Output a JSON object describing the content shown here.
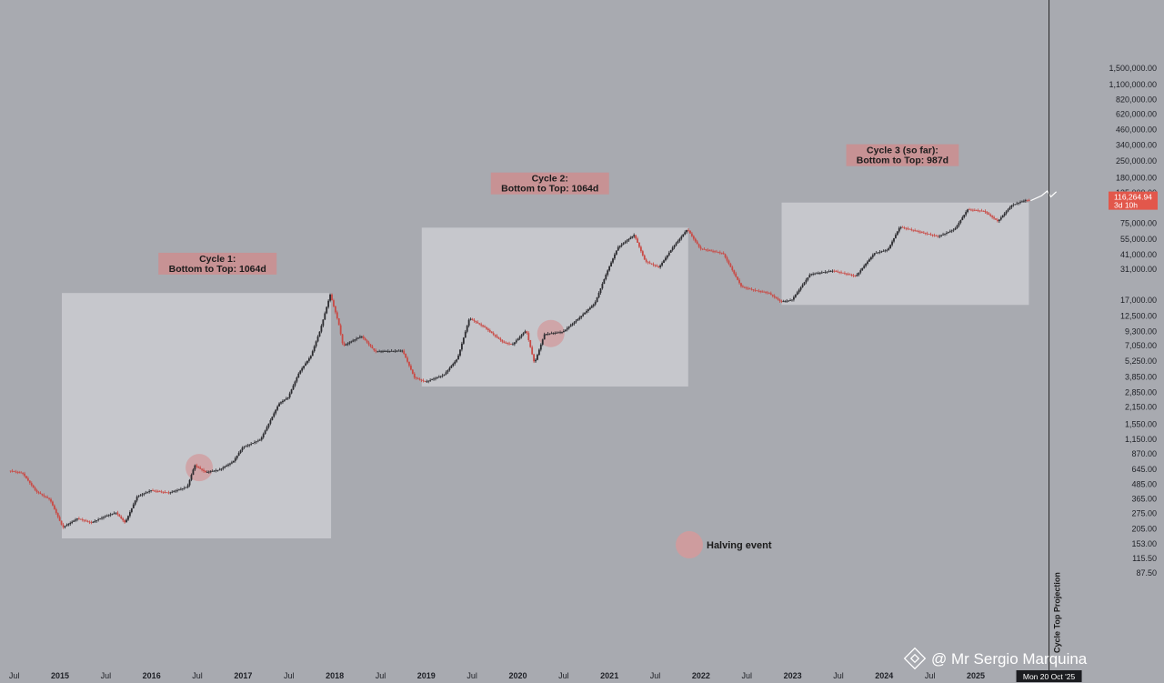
{
  "chart_data": {
    "type": "candlestick",
    "title": "",
    "y_scale": "log",
    "y_ticks": [
      "1,500,000.00",
      "1,100,000.00",
      "820,000.00",
      "620,000.00",
      "460,000.00",
      "340,000.00",
      "250,000.00",
      "180,000.00",
      "135,000.00",
      "75,000.00",
      "55,000.00",
      "41,000.00",
      "31,000.00",
      "17,000.00",
      "12,500.00",
      "9,300.00",
      "7,050.00",
      "5,250.00",
      "3,850.00",
      "2,850.00",
      "2,150.00",
      "1,550.00",
      "1,150.00",
      "870.00",
      "645.00",
      "485.00",
      "365.00",
      "275.00",
      "205.00",
      "153.00",
      "115.50",
      "87.50"
    ],
    "x_ticks": [
      {
        "label": "Jul",
        "date": 2014.5,
        "year": false
      },
      {
        "label": "2015",
        "date": 2015.0,
        "year": true
      },
      {
        "label": "Jul",
        "date": 2015.5,
        "year": false
      },
      {
        "label": "2016",
        "date": 2016.0,
        "year": true
      },
      {
        "label": "Jul",
        "date": 2016.5,
        "year": false
      },
      {
        "label": "2017",
        "date": 2017.0,
        "year": true
      },
      {
        "label": "Jul",
        "date": 2017.5,
        "year": false
      },
      {
        "label": "2018",
        "date": 2018.0,
        "year": true
      },
      {
        "label": "Jul",
        "date": 2018.5,
        "year": false
      },
      {
        "label": "2019",
        "date": 2019.0,
        "year": true
      },
      {
        "label": "Jul",
        "date": 2019.5,
        "year": false
      },
      {
        "label": "2020",
        "date": 2020.0,
        "year": true
      },
      {
        "label": "Jul",
        "date": 2020.5,
        "year": false
      },
      {
        "label": "2021",
        "date": 2021.0,
        "year": true
      },
      {
        "label": "Jul",
        "date": 2021.5,
        "year": false
      },
      {
        "label": "2022",
        "date": 2022.0,
        "year": true
      },
      {
        "label": "Jul",
        "date": 2022.5,
        "year": false
      },
      {
        "label": "2023",
        "date": 2023.0,
        "year": true
      },
      {
        "label": "Jul",
        "date": 2023.5,
        "year": false
      },
      {
        "label": "2024",
        "date": 2024.0,
        "year": true
      },
      {
        "label": "Jul",
        "date": 2024.5,
        "year": false
      },
      {
        "label": "2025",
        "date": 2025.0,
        "year": true
      }
    ],
    "price_path": [
      [
        2014.45,
        630
      ],
      [
        2014.6,
        600
      ],
      [
        2014.75,
        420
      ],
      [
        2014.9,
        360
      ],
      [
        2015.04,
        210
      ],
      [
        2015.2,
        250
      ],
      [
        2015.35,
        230
      ],
      [
        2015.5,
        260
      ],
      [
        2015.62,
        280
      ],
      [
        2015.72,
        230
      ],
      [
        2015.85,
        380
      ],
      [
        2016.0,
        430
      ],
      [
        2016.2,
        410
      ],
      [
        2016.4,
        460
      ],
      [
        2016.48,
        700
      ],
      [
        2016.6,
        610
      ],
      [
        2016.75,
        640
      ],
      [
        2016.9,
        750
      ],
      [
        2017.0,
        980
      ],
      [
        2017.2,
        1150
      ],
      [
        2017.4,
        2300
      ],
      [
        2017.5,
        2600
      ],
      [
        2017.62,
        4200
      ],
      [
        2017.75,
        5800
      ],
      [
        2017.85,
        9500
      ],
      [
        2017.96,
        19000
      ],
      [
        2018.05,
        11000
      ],
      [
        2018.1,
        7000
      ],
      [
        2018.3,
        8500
      ],
      [
        2018.45,
        6300
      ],
      [
        2018.75,
        6400
      ],
      [
        2018.88,
        3800
      ],
      [
        2019.0,
        3500
      ],
      [
        2019.2,
        4000
      ],
      [
        2019.35,
        5500
      ],
      [
        2019.48,
        12000
      ],
      [
        2019.65,
        10000
      ],
      [
        2019.85,
        7500
      ],
      [
        2019.95,
        7200
      ],
      [
        2020.1,
        9500
      ],
      [
        2020.19,
        5000
      ],
      [
        2020.3,
        8800
      ],
      [
        2020.5,
        9200
      ],
      [
        2020.65,
        11500
      ],
      [
        2020.85,
        16000
      ],
      [
        2020.98,
        29000
      ],
      [
        2021.1,
        47000
      ],
      [
        2021.28,
        60000
      ],
      [
        2021.4,
        36000
      ],
      [
        2021.55,
        32000
      ],
      [
        2021.7,
        47000
      ],
      [
        2021.86,
        67000
      ],
      [
        2022.0,
        46000
      ],
      [
        2022.25,
        42000
      ],
      [
        2022.45,
        22000
      ],
      [
        2022.6,
        20500
      ],
      [
        2022.75,
        19500
      ],
      [
        2022.88,
        16500
      ],
      [
        2023.0,
        17000
      ],
      [
        2023.2,
        28000
      ],
      [
        2023.45,
        30000
      ],
      [
        2023.7,
        27000
      ],
      [
        2023.9,
        42000
      ],
      [
        2024.05,
        45000
      ],
      [
        2024.18,
        70000
      ],
      [
        2024.45,
        62000
      ],
      [
        2024.6,
        58000
      ],
      [
        2024.78,
        67000
      ],
      [
        2024.92,
        98000
      ],
      [
        2025.1,
        95000
      ],
      [
        2025.25,
        78000
      ],
      [
        2025.4,
        106000
      ],
      [
        2025.55,
        117000
      ],
      [
        2025.6,
        116264
      ]
    ],
    "projection_path": [
      [
        2025.6,
        116264
      ],
      [
        2025.72,
        128000
      ],
      [
        2025.78,
        140000
      ],
      [
        2025.82,
        125000
      ],
      [
        2025.88,
        138000
      ]
    ],
    "halving_events": [
      2016.52,
      2020.36
    ],
    "cycle_boxes": [
      {
        "x0": 2015.02,
        "x1": 2017.96,
        "y_low": 170,
        "y_high": 19500
      },
      {
        "x0": 2018.95,
        "x1": 2021.86,
        "y_low": 3200,
        "y_high": 69000
      },
      {
        "x0": 2022.88,
        "x1": 2025.58,
        "y_low": 15500,
        "y_high": 112000
      }
    ],
    "annotations": [
      {
        "line1": "Cycle 1:",
        "line2": "Bottom to Top: 1064d",
        "x": 2016.72,
        "y": 35000
      },
      {
        "line1": "Cycle 2:",
        "line2": "Bottom to Top: 1064d",
        "x": 2020.35,
        "y": 165000
      },
      {
        "line1": "Cycle 3 (so far):",
        "line2": "Bottom to Top: 987d",
        "x": 2024.2,
        "y": 285000
      }
    ],
    "halving_legend": "Halving event",
    "last_price": "116,264.94",
    "countdown": "3d 10h",
    "projection_label": "Cycle Top Projection",
    "projection_date": "Mon 20 Oct '25",
    "projection_x": 2025.8,
    "watermark": "@ Mr Sergio Marquina"
  }
}
